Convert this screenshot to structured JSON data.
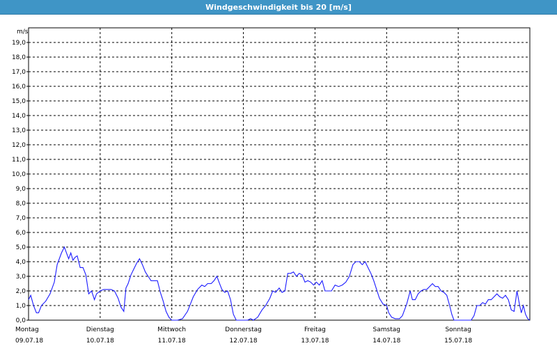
{
  "window": {
    "title": "Windgeschwindigkeit bis 20 [m/s]"
  },
  "chart_data": {
    "type": "line",
    "title": "Windgeschwindigkeit bis 20 [m/s]",
    "ylabel": "m/s",
    "xlabel": "",
    "ylim": [
      0,
      20
    ],
    "xlim": [
      0,
      7
    ],
    "grid": true,
    "line_color": "#1a1aff",
    "y_ticks": [
      "0,0",
      "1,0",
      "2,0",
      "3,0",
      "4,0",
      "5,0",
      "6,0",
      "7,0",
      "8,0",
      "9,0",
      "10,0",
      "11,0",
      "12,0",
      "13,0",
      "14,0",
      "15,0",
      "16,0",
      "17,0",
      "18,0",
      "19,0"
    ],
    "days": [
      {
        "name": "Montag",
        "date": "09.07.18"
      },
      {
        "name": "Dienstag",
        "date": "10.07.18"
      },
      {
        "name": "Mittwoch",
        "date": "11.07.18"
      },
      {
        "name": "Donnerstag",
        "date": "12.07.18"
      },
      {
        "name": "Freitag",
        "date": "13.07.18"
      },
      {
        "name": "Samstag",
        "date": "14.07.18"
      },
      {
        "name": "Sonntag",
        "date": "15.07.18"
      }
    ],
    "series": [
      {
        "points": [
          [
            0.0,
            1.4
          ],
          [
            0.03,
            1.7
          ],
          [
            0.07,
            1.0
          ],
          [
            0.11,
            0.5
          ],
          [
            0.14,
            0.5
          ],
          [
            0.18,
            1.0
          ],
          [
            0.24,
            1.3
          ],
          [
            0.3,
            1.8
          ],
          [
            0.36,
            2.6
          ],
          [
            0.4,
            3.8
          ],
          [
            0.46,
            4.6
          ],
          [
            0.5,
            5.0
          ],
          [
            0.53,
            4.6
          ],
          [
            0.56,
            4.2
          ],
          [
            0.59,
            4.6
          ],
          [
            0.62,
            4.1
          ],
          [
            0.65,
            4.3
          ],
          [
            0.68,
            4.4
          ],
          [
            0.72,
            3.6
          ],
          [
            0.76,
            3.6
          ],
          [
            0.8,
            3.1
          ],
          [
            0.84,
            1.8
          ],
          [
            0.88,
            2.0
          ],
          [
            0.92,
            1.4
          ],
          [
            0.95,
            1.8
          ],
          [
            1.0,
            2.0
          ],
          [
            1.05,
            2.1
          ],
          [
            1.1,
            2.1
          ],
          [
            1.15,
            2.1
          ],
          [
            1.2,
            2.0
          ],
          [
            1.25,
            1.5
          ],
          [
            1.29,
            0.9
          ],
          [
            1.33,
            0.6
          ],
          [
            1.36,
            2.2
          ],
          [
            1.39,
            2.5
          ],
          [
            1.43,
            3.1
          ],
          [
            1.47,
            3.5
          ],
          [
            1.51,
            3.9
          ],
          [
            1.55,
            4.2
          ],
          [
            1.59,
            3.8
          ],
          [
            1.63,
            3.3
          ],
          [
            1.67,
            3.0
          ],
          [
            1.71,
            2.7
          ],
          [
            1.75,
            2.7
          ],
          [
            1.8,
            2.7
          ],
          [
            1.84,
            1.9
          ],
          [
            1.88,
            1.3
          ],
          [
            1.92,
            0.6
          ],
          [
            1.96,
            0.2
          ],
          [
            2.0,
            0.0
          ],
          [
            2.08,
            0.0
          ],
          [
            2.15,
            0.1
          ],
          [
            2.22,
            0.6
          ],
          [
            2.3,
            1.6
          ],
          [
            2.36,
            2.1
          ],
          [
            2.42,
            2.4
          ],
          [
            2.46,
            2.3
          ],
          [
            2.5,
            2.5
          ],
          [
            2.55,
            2.5
          ],
          [
            2.59,
            2.7
          ],
          [
            2.63,
            3.0
          ],
          [
            2.66,
            2.6
          ],
          [
            2.7,
            2.1
          ],
          [
            2.74,
            1.9
          ],
          [
            2.78,
            2.0
          ],
          [
            2.82,
            1.4
          ],
          [
            2.86,
            0.4
          ],
          [
            2.9,
            0.0
          ],
          [
            3.0,
            0.0
          ],
          [
            3.06,
            0.0
          ],
          [
            3.1,
            0.1
          ],
          [
            3.14,
            0.0
          ],
          [
            3.2,
            0.2
          ],
          [
            3.26,
            0.7
          ],
          [
            3.31,
            1.0
          ],
          [
            3.37,
            1.5
          ],
          [
            3.41,
            2.0
          ],
          [
            3.45,
            1.9
          ],
          [
            3.5,
            2.2
          ],
          [
            3.54,
            1.9
          ],
          [
            3.58,
            2.0
          ],
          [
            3.62,
            3.2
          ],
          [
            3.66,
            3.2
          ],
          [
            3.7,
            3.3
          ],
          [
            3.74,
            3.0
          ],
          [
            3.78,
            3.2
          ],
          [
            3.82,
            3.1
          ],
          [
            3.86,
            2.6
          ],
          [
            3.9,
            2.7
          ],
          [
            3.94,
            2.6
          ],
          [
            3.98,
            2.4
          ],
          [
            4.02,
            2.6
          ],
          [
            4.06,
            2.4
          ],
          [
            4.1,
            2.7
          ],
          [
            4.14,
            2.0
          ],
          [
            4.18,
            2.0
          ],
          [
            4.23,
            2.0
          ],
          [
            4.28,
            2.4
          ],
          [
            4.33,
            2.3
          ],
          [
            4.38,
            2.4
          ],
          [
            4.43,
            2.6
          ],
          [
            4.48,
            3.0
          ],
          [
            4.53,
            3.8
          ],
          [
            4.57,
            4.0
          ],
          [
            4.62,
            4.0
          ],
          [
            4.66,
            3.8
          ],
          [
            4.7,
            4.0
          ],
          [
            4.74,
            3.6
          ],
          [
            4.78,
            3.2
          ],
          [
            4.82,
            2.7
          ],
          [
            4.86,
            2.1
          ],
          [
            4.9,
            1.5
          ],
          [
            4.95,
            1.1
          ],
          [
            5.0,
            1.0
          ],
          [
            5.03,
            0.5
          ],
          [
            5.07,
            0.2
          ],
          [
            5.12,
            0.1
          ],
          [
            5.18,
            0.1
          ],
          [
            5.22,
            0.3
          ],
          [
            5.28,
            1.1
          ],
          [
            5.33,
            2.0
          ],
          [
            5.36,
            1.4
          ],
          [
            5.4,
            1.4
          ],
          [
            5.44,
            1.8
          ],
          [
            5.48,
            2.0
          ],
          [
            5.52,
            2.1
          ],
          [
            5.56,
            2.1
          ],
          [
            5.6,
            2.3
          ],
          [
            5.64,
            2.5
          ],
          [
            5.68,
            2.3
          ],
          [
            5.72,
            2.3
          ],
          [
            5.76,
            2.0
          ],
          [
            5.8,
            1.9
          ],
          [
            5.84,
            1.7
          ],
          [
            5.88,
            1.0
          ],
          [
            5.91,
            0.4
          ],
          [
            5.94,
            0.0
          ],
          [
            6.0,
            0.0
          ],
          [
            6.1,
            0.0
          ],
          [
            6.18,
            0.0
          ],
          [
            6.22,
            0.3
          ],
          [
            6.26,
            1.0
          ],
          [
            6.3,
            1.0
          ],
          [
            6.34,
            1.2
          ],
          [
            6.38,
            1.1
          ],
          [
            6.42,
            1.4
          ],
          [
            6.46,
            1.4
          ],
          [
            6.5,
            1.6
          ],
          [
            6.54,
            1.8
          ],
          [
            6.58,
            1.6
          ],
          [
            6.62,
            1.5
          ],
          [
            6.66,
            1.7
          ],
          [
            6.7,
            1.4
          ],
          [
            6.74,
            0.7
          ],
          [
            6.78,
            0.6
          ],
          [
            6.82,
            2.0
          ],
          [
            6.85,
            1.2
          ],
          [
            6.88,
            0.5
          ],
          [
            6.91,
            1.0
          ],
          [
            6.94,
            0.4
          ],
          [
            6.97,
            0.1
          ],
          [
            7.0,
            0.0
          ]
        ]
      }
    ]
  }
}
